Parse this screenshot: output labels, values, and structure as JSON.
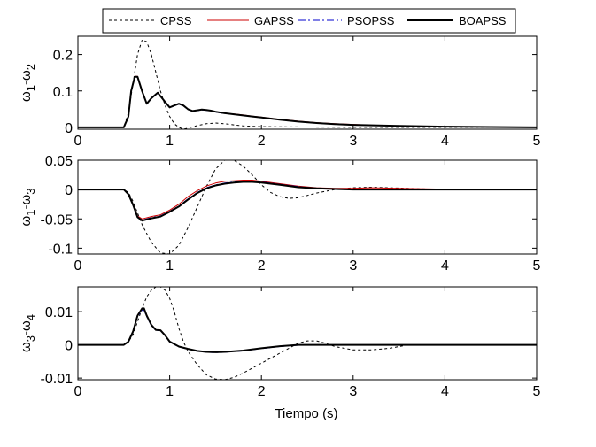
{
  "legend": {
    "entries": [
      {
        "label": "CPSS",
        "color": "#000000",
        "dash": "3,3",
        "width": 1
      },
      {
        "label": "GAPSS",
        "color": "#cc0000",
        "dash": "",
        "width": 1
      },
      {
        "label": "PSOPSS",
        "color": "#0000cc",
        "dash": "8,3,2,3",
        "width": 1
      },
      {
        "label": "BOAPSS",
        "color": "#000000",
        "dash": "",
        "width": 2
      }
    ]
  },
  "xlabel": "Tiempo (s)",
  "chart_data": [
    {
      "type": "line",
      "ylabel_main": "ω",
      "ylabel_sub1": "1",
      "ylabel_mid": "-ω",
      "ylabel_sub2": "2",
      "xlim": [
        0,
        5
      ],
      "ylim": [
        -0.005,
        0.25
      ],
      "xticks": [
        "0",
        "1",
        "2",
        "3",
        "4",
        "5"
      ],
      "yticks": [
        {
          "v": 0,
          "label": "0"
        },
        {
          "v": 0.1,
          "label": "0.1"
        },
        {
          "v": 0.2,
          "label": "0.2"
        }
      ],
      "series": [
        {
          "name": "CPSS",
          "x": [
            0,
            0.5,
            0.55,
            0.6,
            0.65,
            0.7,
            0.75,
            0.8,
            0.85,
            0.9,
            0.95,
            1.0,
            1.05,
            1.1,
            1.15,
            1.2,
            1.3,
            1.4,
            1.5,
            1.6,
            1.7,
            1.8,
            2.0,
            2.5,
            3.0,
            3.5,
            4.0,
            5.0
          ],
          "y": [
            0,
            0,
            0.04,
            0.12,
            0.2,
            0.24,
            0.235,
            0.2,
            0.15,
            0.1,
            0.06,
            0.03,
            0.01,
            0.0,
            -0.005,
            -0.002,
            0.005,
            0.01,
            0.012,
            0.01,
            0.007,
            0.004,
            0.002,
            0.001,
            0,
            0,
            0,
            0
          ]
        },
        {
          "name": "GAPSS",
          "x": [
            0,
            0.5,
            0.55,
            0.58,
            0.62,
            0.65,
            0.7,
            0.75,
            0.8,
            0.87,
            0.95,
            1.0,
            1.05,
            1.1,
            1.15,
            1.2,
            1.25,
            1.3,
            1.35,
            1.4,
            1.45,
            1.5,
            1.6,
            1.7,
            1.8,
            1.9,
            2.0,
            2.2,
            2.4,
            2.6,
            2.8,
            3.0,
            3.2,
            3.5,
            3.8,
            3.9
          ],
          "y": [
            0,
            0,
            0.03,
            0.1,
            0.14,
            0.14,
            0.1,
            0.065,
            0.08,
            0.095,
            0.07,
            0.055,
            0.06,
            0.065,
            0.06,
            0.05,
            0.045,
            0.047,
            0.049,
            0.048,
            0.046,
            0.043,
            0.039,
            0.037,
            0.034,
            0.031,
            0.028,
            0.022,
            0.017,
            0.013,
            0.01,
            0.008,
            0.006,
            0.004,
            0.002,
            0.002
          ]
        },
        {
          "name": "PSOPSS",
          "x": [
            0,
            0.5,
            0.55,
            0.58,
            0.62,
            0.65,
            0.7,
            0.75,
            0.8,
            0.87,
            0.95,
            1.0,
            1.05,
            1.1,
            1.15,
            1.2,
            1.25,
            1.3,
            1.35,
            1.4,
            1.45,
            1.5,
            1.6,
            1.7,
            1.8,
            1.9,
            2.0,
            2.2,
            2.4,
            2.6,
            2.8,
            3.0,
            3.5,
            4.0,
            4.5,
            5.0
          ],
          "y": [
            0,
            0,
            0.03,
            0.1,
            0.138,
            0.138,
            0.098,
            0.064,
            0.079,
            0.094,
            0.069,
            0.054,
            0.059,
            0.064,
            0.059,
            0.049,
            0.044,
            0.046,
            0.048,
            0.047,
            0.045,
            0.042,
            0.038,
            0.036,
            0.033,
            0.03,
            0.027,
            0.021,
            0.016,
            0.012,
            0.009,
            0.007,
            0.004,
            0.002,
            0.001,
            0
          ]
        },
        {
          "name": "BOAPSS",
          "x": [
            0,
            0.5,
            0.55,
            0.58,
            0.62,
            0.65,
            0.7,
            0.75,
            0.8,
            0.87,
            0.95,
            1.0,
            1.05,
            1.1,
            1.15,
            1.2,
            1.25,
            1.3,
            1.35,
            1.4,
            1.45,
            1.5,
            1.6,
            1.7,
            1.8,
            1.9,
            2.0,
            2.2,
            2.4,
            2.6,
            2.8,
            3.0,
            3.5,
            4.0,
            4.5,
            5.0
          ],
          "y": [
            0,
            0,
            0.03,
            0.1,
            0.139,
            0.139,
            0.099,
            0.065,
            0.08,
            0.095,
            0.07,
            0.055,
            0.06,
            0.065,
            0.06,
            0.05,
            0.045,
            0.047,
            0.049,
            0.048,
            0.046,
            0.043,
            0.039,
            0.036,
            0.033,
            0.03,
            0.027,
            0.021,
            0.016,
            0.012,
            0.009,
            0.007,
            0.004,
            0.002,
            0.001,
            0
          ]
        }
      ]
    },
    {
      "type": "line",
      "ylabel_main": "ω",
      "ylabel_sub1": "1",
      "ylabel_mid": "-ω",
      "ylabel_sub2": "3",
      "xlim": [
        0,
        5
      ],
      "ylim": [
        -0.11,
        0.05
      ],
      "xticks": [
        "0",
        "1",
        "2",
        "3",
        "4",
        "5"
      ],
      "yticks": [
        {
          "v": 0.05,
          "label": "0.05"
        },
        {
          "v": 0,
          "label": "0"
        },
        {
          "v": -0.05,
          "label": "-0.05"
        },
        {
          "v": -0.1,
          "label": "-0.1"
        }
      ],
      "series": [
        {
          "name": "CPSS",
          "x": [
            0,
            0.5,
            0.55,
            0.6,
            0.7,
            0.8,
            0.9,
            1.0,
            1.1,
            1.2,
            1.3,
            1.4,
            1.5,
            1.6,
            1.7,
            1.8,
            1.9,
            2.0,
            2.1,
            2.2,
            2.3,
            2.4,
            2.5,
            2.6,
            2.8,
            3.0,
            3.2,
            3.4,
            3.6,
            3.8,
            4.0,
            5.0
          ],
          "y": [
            0,
            0,
            -0.005,
            -0.02,
            -0.06,
            -0.09,
            -0.108,
            -0.11,
            -0.095,
            -0.065,
            -0.03,
            0.005,
            0.035,
            0.05,
            0.05,
            0.04,
            0.025,
            0.008,
            -0.005,
            -0.012,
            -0.015,
            -0.014,
            -0.01,
            -0.006,
            0,
            0.003,
            0.004,
            0.003,
            0.002,
            0.001,
            0,
            0
          ]
        },
        {
          "name": "GAPSS",
          "x": [
            0,
            0.5,
            0.55,
            0.6,
            0.65,
            0.7,
            0.8,
            0.9,
            1.0,
            1.1,
            1.2,
            1.3,
            1.4,
            1.5,
            1.6,
            1.7,
            1.8,
            1.9,
            2.0,
            2.2,
            2.4,
            2.6,
            2.8,
            3.0,
            3.2,
            3.5,
            3.9
          ],
          "y": [
            0,
            0,
            -0.008,
            -0.025,
            -0.045,
            -0.05,
            -0.046,
            -0.043,
            -0.035,
            -0.025,
            -0.012,
            -0.002,
            0.006,
            0.011,
            0.014,
            0.015,
            0.016,
            0.016,
            0.014,
            0.01,
            0.006,
            0.003,
            0.002,
            0.002,
            0.003,
            0.002,
            0.001
          ]
        },
        {
          "name": "PSOPSS",
          "x": [
            0,
            0.5,
            0.55,
            0.6,
            0.65,
            0.7,
            0.8,
            0.9,
            1.0,
            1.1,
            1.2,
            1.3,
            1.4,
            1.5,
            1.6,
            1.7,
            1.8,
            1.9,
            2.0,
            2.2,
            2.4,
            2.6,
            2.8,
            3.0,
            3.5,
            4.0,
            5.0
          ],
          "y": [
            0,
            0,
            -0.008,
            -0.026,
            -0.046,
            -0.052,
            -0.048,
            -0.045,
            -0.037,
            -0.028,
            -0.016,
            -0.005,
            0.003,
            0.008,
            0.011,
            0.013,
            0.014,
            0.014,
            0.013,
            0.009,
            0.005,
            0.002,
            0.001,
            0,
            0,
            0,
            0
          ]
        },
        {
          "name": "BOAPSS",
          "x": [
            0,
            0.5,
            0.55,
            0.6,
            0.65,
            0.7,
            0.8,
            0.9,
            1.0,
            1.1,
            1.2,
            1.3,
            1.4,
            1.5,
            1.6,
            1.7,
            1.8,
            1.9,
            2.0,
            2.2,
            2.4,
            2.6,
            2.8,
            3.0,
            3.5,
            4.0,
            5.0
          ],
          "y": [
            0,
            0,
            -0.008,
            -0.026,
            -0.047,
            -0.053,
            -0.049,
            -0.046,
            -0.038,
            -0.029,
            -0.017,
            -0.006,
            0.002,
            0.007,
            0.01,
            0.012,
            0.013,
            0.013,
            0.012,
            0.008,
            0.004,
            0.002,
            0.001,
            0,
            0,
            0,
            0
          ]
        }
      ]
    },
    {
      "type": "line",
      "ylabel_main": "ω",
      "ylabel_sub1": "3",
      "ylabel_mid": "-ω",
      "ylabel_sub2": "4",
      "xlim": [
        0,
        5
      ],
      "ylim": [
        -0.0105,
        0.0175
      ],
      "xticks": [
        "0",
        "1",
        "2",
        "3",
        "4",
        "5"
      ],
      "yticks": [
        {
          "v": 0.01,
          "label": "0.01"
        },
        {
          "v": 0,
          "label": "0"
        },
        {
          "v": -0.01,
          "label": "-0.01"
        }
      ],
      "series": [
        {
          "name": "CPSS",
          "x": [
            0,
            0.5,
            0.55,
            0.6,
            0.65,
            0.7,
            0.75,
            0.8,
            0.85,
            0.9,
            0.95,
            1.0,
            1.05,
            1.1,
            1.15,
            1.2,
            1.3,
            1.4,
            1.5,
            1.6,
            1.7,
            1.8,
            1.9,
            2.0,
            2.1,
            2.2,
            2.3,
            2.4,
            2.5,
            2.6,
            2.7,
            2.8,
            3.0,
            3.2,
            3.4,
            3.6,
            5.0
          ],
          "y": [
            0,
            0,
            0.001,
            0.003,
            0.007,
            0.011,
            0.0145,
            0.0165,
            0.0175,
            0.0175,
            0.0165,
            0.014,
            0.01,
            0.005,
            0.001,
            -0.002,
            -0.006,
            -0.009,
            -0.0103,
            -0.0105,
            -0.0098,
            -0.0085,
            -0.007,
            -0.0055,
            -0.004,
            -0.0025,
            -0.001,
            0.0005,
            0.0012,
            0.0012,
            0.0005,
            -0.0005,
            -0.0015,
            -0.0015,
            -0.001,
            0,
            0
          ]
        },
        {
          "name": "GAPSS",
          "x": [
            0,
            0.5,
            0.55,
            0.6,
            0.65,
            0.7,
            0.72,
            0.75,
            0.8,
            0.85,
            0.9,
            0.95,
            1.0,
            1.1,
            1.2,
            1.3,
            1.4,
            1.5,
            1.6,
            1.8,
            2.0,
            2.2,
            2.4,
            2.6,
            3.0,
            5.0
          ],
          "y": [
            0,
            0,
            0.001,
            0.004,
            0.009,
            0.011,
            0.011,
            0.009,
            0.006,
            0.0045,
            0.0045,
            0.003,
            0.001,
            -0.0005,
            -0.0012,
            -0.0018,
            -0.0021,
            -0.0022,
            -0.0021,
            -0.0017,
            -0.001,
            -0.0004,
            0,
            0,
            0,
            0
          ]
        },
        {
          "name": "PSOPSS",
          "x": [
            0,
            0.5,
            0.55,
            0.6,
            0.65,
            0.7,
            0.72,
            0.75,
            0.8,
            0.85,
            0.9,
            0.95,
            1.0,
            1.1,
            1.2,
            1.3,
            1.4,
            1.5,
            1.6,
            1.8,
            2.0,
            2.2,
            2.4,
            2.6,
            3.0,
            5.0
          ],
          "y": [
            0,
            0,
            0.001,
            0.004,
            0.0085,
            0.0105,
            0.0105,
            0.0085,
            0.0058,
            0.0043,
            0.0043,
            0.0028,
            0.0009,
            -0.0006,
            -0.0013,
            -0.0019,
            -0.0022,
            -0.0023,
            -0.0022,
            -0.0018,
            -0.0011,
            -0.0005,
            -0.0001,
            0,
            0,
            0
          ]
        },
        {
          "name": "BOAPSS",
          "x": [
            0,
            0.5,
            0.55,
            0.6,
            0.65,
            0.7,
            0.72,
            0.75,
            0.8,
            0.85,
            0.9,
            0.95,
            1.0,
            1.1,
            1.2,
            1.3,
            1.4,
            1.5,
            1.6,
            1.8,
            2.0,
            2.2,
            2.4,
            2.6,
            3.0,
            5.0
          ],
          "y": [
            0,
            0,
            0.001,
            0.004,
            0.0088,
            0.011,
            0.011,
            0.0088,
            0.006,
            0.0045,
            0.0044,
            0.0029,
            0.001,
            -0.0005,
            -0.0012,
            -0.0018,
            -0.0021,
            -0.0022,
            -0.0021,
            -0.0017,
            -0.001,
            -0.0004,
            0,
            0,
            0,
            0
          ]
        }
      ]
    }
  ]
}
